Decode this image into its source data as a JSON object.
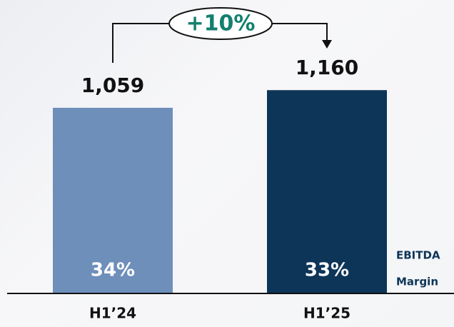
{
  "chart_data": {
    "type": "bar",
    "categories": [
      "H1’24",
      "H1’25"
    ],
    "values": [
      1059,
      1160
    ],
    "value_labels": [
      "1,059",
      "1,160"
    ],
    "colors": [
      "#6f8fbb",
      "#0d3557"
    ],
    "ylim": [
      0,
      1300
    ],
    "margin": {
      "name_lines": [
        "EBITDA",
        "Margin"
      ],
      "values": [
        34,
        33
      ],
      "value_labels": [
        "34%",
        "33%"
      ]
    },
    "annotation": "+10%"
  }
}
